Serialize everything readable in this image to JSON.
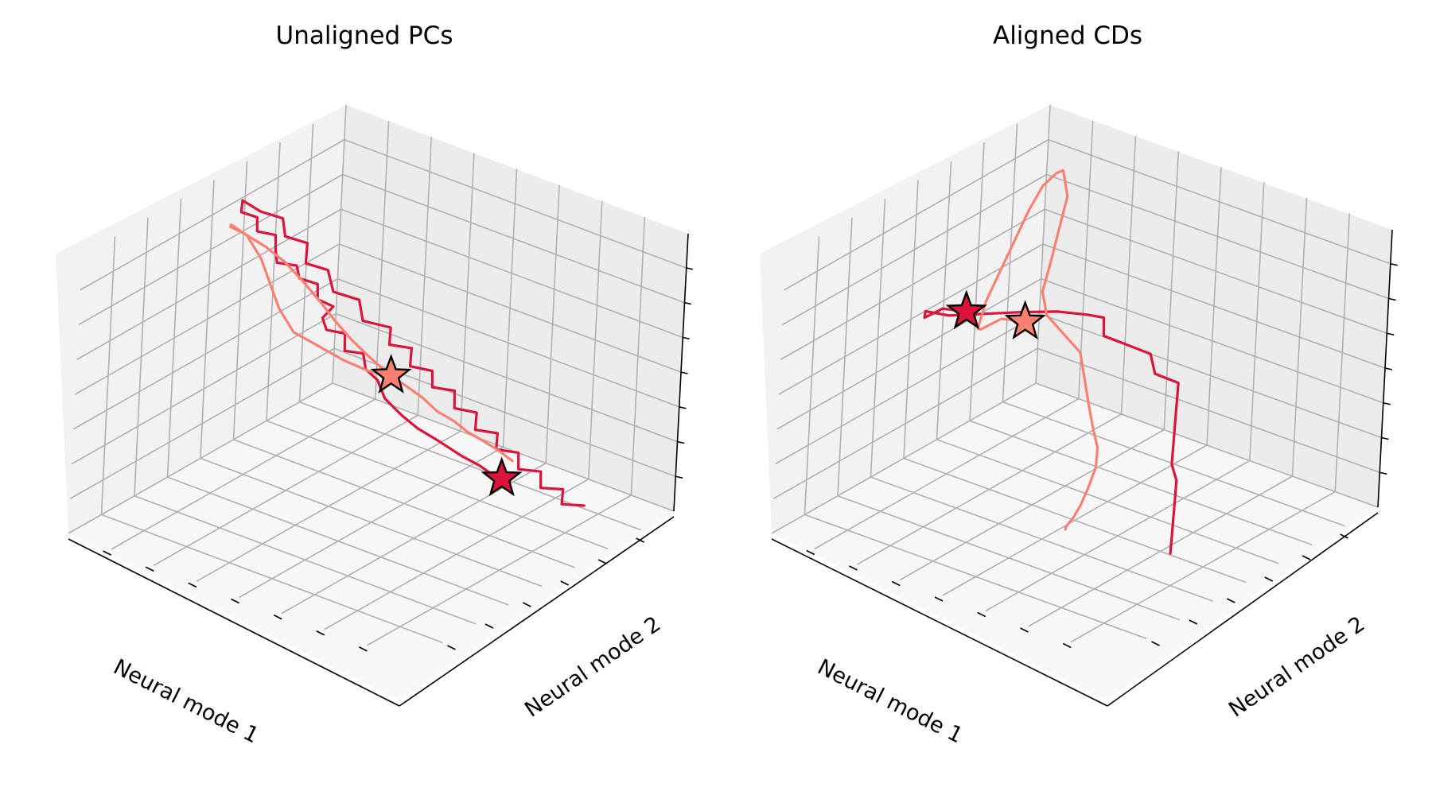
{
  "chart_data": [
    {
      "type": "line",
      "title": "Unaligned PCs",
      "xlabel": "Neural mode 1",
      "ylabel": "Neural mode 2",
      "zlabel": "",
      "grid": true,
      "series": [
        {
          "color": "#dc143c",
          "start_marker": "star",
          "points": [
            [
              -0.2,
              0.1,
              0.05
            ],
            [
              -0.1,
              0.05,
              0.2
            ],
            [
              0.05,
              0.0,
              0.35
            ],
            [
              0.2,
              -0.05,
              0.55
            ],
            [
              0.35,
              -0.05,
              0.75
            ],
            [
              0.45,
              0.0,
              0.92
            ],
            [
              0.55,
              0.05,
              1.08
            ],
            [
              0.6,
              0.1,
              1.2
            ],
            [
              0.62,
              0.18,
              1.32
            ],
            [
              0.58,
              0.25,
              1.42
            ],
            [
              0.6,
              0.3,
              1.5
            ],
            [
              0.55,
              0.35,
              1.58
            ],
            [
              0.62,
              0.4,
              1.62
            ],
            [
              0.55,
              0.45,
              1.7
            ],
            [
              0.62,
              0.5,
              1.75
            ],
            [
              0.58,
              0.55,
              1.8
            ],
            [
              0.5,
              0.55,
              1.85
            ],
            [
              0.55,
              0.6,
              1.92
            ],
            [
              0.48,
              0.65,
              1.98
            ],
            [
              0.55,
              0.7,
              2.05
            ],
            [
              0.5,
              0.75,
              2.1
            ],
            [
              0.58,
              0.8,
              2.15
            ],
            [
              0.52,
              0.85,
              2.2
            ],
            [
              0.45,
              0.9,
              2.25
            ],
            [
              0.52,
              0.95,
              2.3
            ],
            [
              0.45,
              1.0,
              2.35
            ],
            [
              0.5,
              1.05,
              2.4
            ],
            [
              0.42,
              1.1,
              2.42
            ],
            [
              0.35,
              1.05,
              2.3
            ],
            [
              0.25,
              1.0,
              2.2
            ],
            [
              0.3,
              0.95,
              2.1
            ],
            [
              0.2,
              0.9,
              2.0
            ],
            [
              0.28,
              0.85,
              1.9
            ],
            [
              0.18,
              0.8,
              1.8
            ],
            [
              0.25,
              0.72,
              1.7
            ],
            [
              0.15,
              0.65,
              1.6
            ],
            [
              0.22,
              0.58,
              1.5
            ],
            [
              0.12,
              0.5,
              1.42
            ],
            [
              0.2,
              0.45,
              1.35
            ],
            [
              0.1,
              0.4,
              1.28
            ],
            [
              0.18,
              0.35,
              1.2
            ],
            [
              0.08,
              0.3,
              1.12
            ],
            [
              0.15,
              0.25,
              1.05
            ],
            [
              0.05,
              0.2,
              0.98
            ],
            [
              0.12,
              0.15,
              0.9
            ],
            [
              0.02,
              0.1,
              0.82
            ],
            [
              0.1,
              0.05,
              0.75
            ],
            [
              0.0,
              0.0,
              0.68
            ],
            [
              0.08,
              -0.05,
              0.62
            ],
            [
              -0.02,
              -0.1,
              0.55
            ],
            [
              0.05,
              -0.15,
              0.48
            ],
            [
              -0.05,
              -0.2,
              0.42
            ],
            [
              0.02,
              -0.25,
              0.35
            ],
            [
              -0.08,
              -0.3,
              0.3
            ],
            [
              0.0,
              -0.35,
              0.25
            ],
            [
              -0.1,
              -0.4,
              0.2
            ]
          ]
        },
        {
          "color": "#fa8072",
          "start_marker": "star",
          "points": [
            [
              0.4,
              0.3,
              1.3
            ],
            [
              0.5,
              0.35,
              1.38
            ],
            [
              0.55,
              0.45,
              1.45
            ],
            [
              0.6,
              0.55,
              1.55
            ],
            [
              0.65,
              0.65,
              1.65
            ],
            [
              0.62,
              0.75,
              1.78
            ],
            [
              0.55,
              0.85,
              1.9
            ],
            [
              0.48,
              0.95,
              2.02
            ],
            [
              0.45,
              1.05,
              2.15
            ],
            [
              0.5,
              1.1,
              2.25
            ],
            [
              0.58,
              1.05,
              2.32
            ],
            [
              0.62,
              0.95,
              2.35
            ],
            [
              0.6,
              0.85,
              2.28
            ],
            [
              0.55,
              0.78,
              2.15
            ],
            [
              0.52,
              0.7,
              2.0
            ],
            [
              0.5,
              0.62,
              1.85
            ],
            [
              0.48,
              0.55,
              1.7
            ],
            [
              0.45,
              0.48,
              1.55
            ],
            [
              0.4,
              0.42,
              1.4
            ],
            [
              0.35,
              0.35,
              1.25
            ],
            [
              0.28,
              0.3,
              1.12
            ],
            [
              0.22,
              0.25,
              1.0
            ],
            [
              0.18,
              0.2,
              0.88
            ],
            [
              0.12,
              0.15,
              0.78
            ],
            [
              0.08,
              0.1,
              0.68
            ],
            [
              0.02,
              0.05,
              0.58
            ],
            [
              -0.02,
              0.0,
              0.5
            ],
            [
              -0.05,
              -0.05,
              0.42
            ]
          ]
        }
      ]
    },
    {
      "type": "line",
      "title": "Aligned CDs",
      "xlabel": "Neural mode 1",
      "ylabel": "Neural mode 2",
      "zlabel": "",
      "grid": true,
      "series": [
        {
          "color": "#dc143c",
          "start_marker": "star",
          "points": [
            [
              0.95,
              0.2,
              1.85
            ],
            [
              1.05,
              0.25,
              1.9
            ],
            [
              1.1,
              0.3,
              1.82
            ],
            [
              1.0,
              0.35,
              1.78
            ],
            [
              0.9,
              0.3,
              1.72
            ],
            [
              0.7,
              0.25,
              1.65
            ],
            [
              0.5,
              0.2,
              1.58
            ],
            [
              0.3,
              0.15,
              1.5
            ],
            [
              0.15,
              0.1,
              1.42
            ],
            [
              0.05,
              0.08,
              1.35
            ],
            [
              0.1,
              0.05,
              1.25
            ],
            [
              0.0,
              0.0,
              1.15
            ],
            [
              -0.1,
              -0.05,
              1.05
            ],
            [
              -0.05,
              -0.1,
              0.95
            ],
            [
              -0.15,
              -0.15,
              0.85
            ],
            [
              -0.05,
              -0.2,
              0.78
            ],
            [
              0.05,
              -0.25,
              0.7
            ],
            [
              0.15,
              -0.3,
              0.62
            ],
            [
              0.25,
              -0.35,
              0.55
            ],
            [
              0.3,
              -0.4,
              0.48
            ],
            [
              0.4,
              -0.45,
              0.42
            ],
            [
              0.5,
              -0.5,
              0.35
            ],
            [
              0.6,
              -0.55,
              0.3
            ],
            [
              0.7,
              -0.6,
              0.25
            ]
          ]
        },
        {
          "color": "#fa8072",
          "start_marker": "star",
          "points": [
            [
              0.75,
              0.05,
              1.75
            ],
            [
              0.85,
              0.1,
              1.8
            ],
            [
              0.92,
              0.15,
              1.72
            ],
            [
              0.85,
              0.2,
              1.65
            ],
            [
              0.7,
              0.25,
              1.75
            ],
            [
              0.5,
              0.3,
              1.85
            ],
            [
              0.3,
              0.35,
              1.95
            ],
            [
              0.1,
              0.4,
              2.05
            ],
            [
              -0.1,
              0.45,
              2.1
            ],
            [
              -0.3,
              0.5,
              2.05
            ],
            [
              -0.45,
              0.55,
              1.95
            ],
            [
              -0.4,
              0.5,
              1.8
            ],
            [
              -0.25,
              0.45,
              1.65
            ],
            [
              -0.1,
              0.4,
              1.5
            ],
            [
              0.05,
              0.35,
              1.38
            ],
            [
              0.1,
              0.3,
              1.25
            ],
            [
              0.05,
              0.25,
              1.1
            ],
            [
              0.0,
              0.2,
              0.95
            ],
            [
              0.05,
              0.15,
              0.8
            ],
            [
              0.1,
              0.1,
              0.65
            ],
            [
              0.15,
              0.05,
              0.52
            ],
            [
              0.2,
              0.0,
              0.42
            ],
            [
              0.3,
              -0.05,
              0.35
            ],
            [
              0.45,
              -0.1,
              0.3
            ],
            [
              0.6,
              -0.15,
              0.28
            ],
            [
              0.75,
              -0.2,
              0.3
            ],
            [
              0.9,
              -0.25,
              0.35
            ],
            [
              1.0,
              -0.3,
              0.42
            ]
          ]
        }
      ]
    }
  ]
}
